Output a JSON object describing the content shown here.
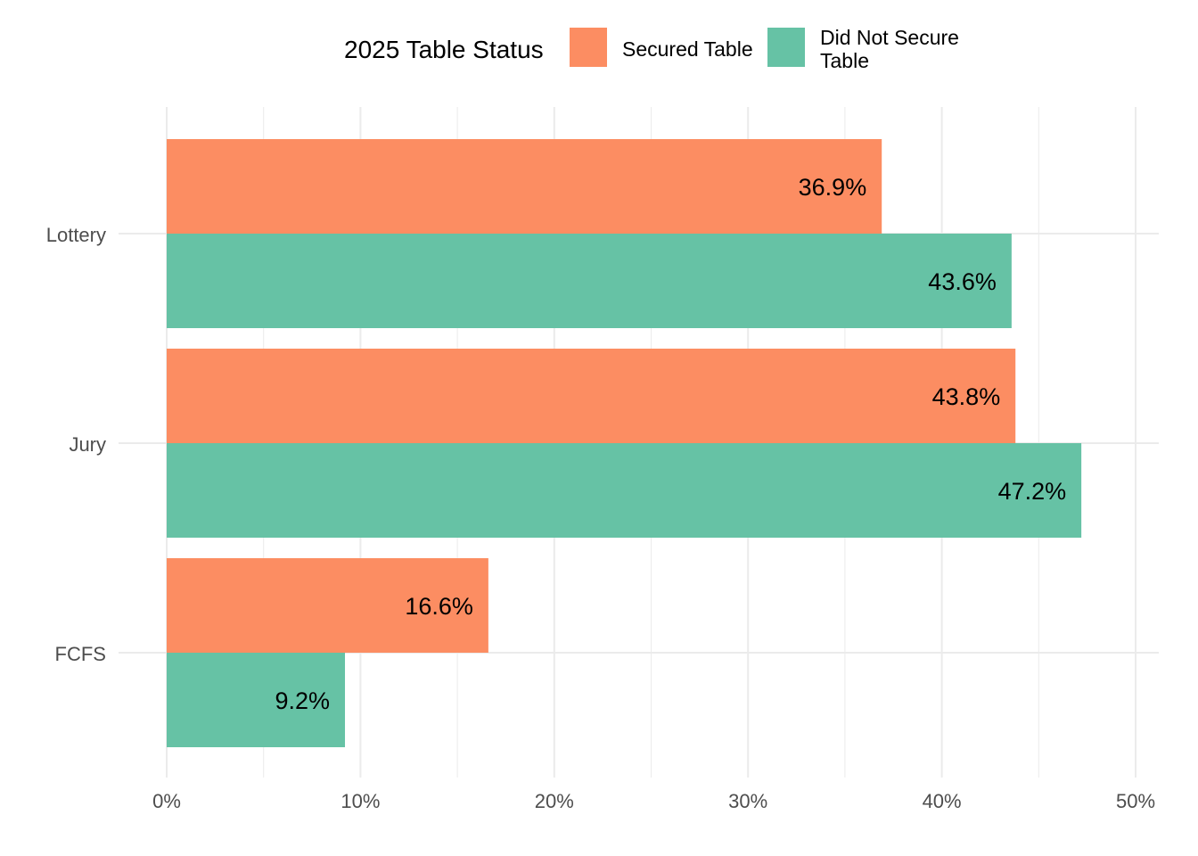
{
  "chart_data": {
    "type": "bar",
    "orientation": "horizontal",
    "title": "",
    "xlabel": "",
    "ylabel": "",
    "xlim": [
      0,
      50
    ],
    "x_ticks": [
      "0%",
      "10%",
      "20%",
      "30%",
      "40%",
      "50%"
    ],
    "categories": [
      "Lottery",
      "Jury",
      "FCFS"
    ],
    "legend_title": "2025 Table Status",
    "legend_position": "top",
    "grid": true,
    "series": [
      {
        "name": "Secured Table",
        "color": "#fc8d62",
        "values": [
          36.9,
          43.8,
          16.6
        ],
        "labels": [
          "36.9%",
          "43.8%",
          "16.6%"
        ]
      },
      {
        "name": "Did Not Secure Table",
        "name_lines": [
          "Did Not Secure",
          "Table"
        ],
        "color": "#66c2a5",
        "values": [
          43.6,
          47.2,
          9.2
        ],
        "labels": [
          "43.6%",
          "47.2%",
          "9.2%"
        ]
      }
    ]
  }
}
